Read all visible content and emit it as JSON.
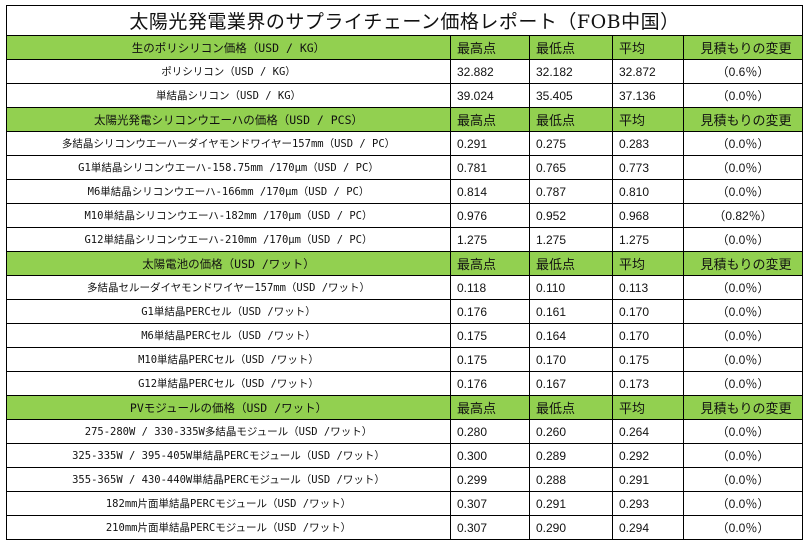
{
  "title": "太陽光発電業界のサプライチェーン価格レポート（FOB中国）",
  "columns": [
    "最高点",
    "最低点",
    "平均",
    "見積もりの変更"
  ],
  "sections": [
    {
      "title": "生のポリシリコン価格（USD / KG）",
      "rows": [
        {
          "name": "ポリシリコン（USD / KG）",
          "high": "32.882",
          "low": "32.182",
          "avg": "32.872",
          "change": "（0.6％）"
        },
        {
          "name": "単結晶シリコン（USD / KG）",
          "high": "39.024",
          "low": "35.405",
          "avg": "37.136",
          "change": "（0.0％）"
        }
      ]
    },
    {
      "title": "太陽光発電シリコンウエーハの価格（USD / PCS）",
      "rows": [
        {
          "name": "多結晶シリコンウエーハーダイヤモンドワイヤー157mm（USD / PC）",
          "high": "0.291",
          "low": "0.275",
          "avg": "0.283",
          "change": "（0.0％）"
        },
        {
          "name": "G1単結晶シリコンウエーハ-158.75mm /170μm（USD / PC）",
          "high": "0.781",
          "low": "0.765",
          "avg": "0.773",
          "change": "（0.0％）"
        },
        {
          "name": "M6単結晶シリコンウエーハ-166mm /170μm（USD / PC）",
          "high": "0.814",
          "low": "0.787",
          "avg": "0.810",
          "change": "（0.0％）"
        },
        {
          "name": "M10単結晶シリコンウエーハ-182mm /170μm（USD / PC）",
          "high": "0.976",
          "low": "0.952",
          "avg": "0.968",
          "change": "（0.82％）"
        },
        {
          "name": "G12単結晶シリコンウエーハ-210mm /170μm（USD / PC）",
          "high": "1.275",
          "low": "1.275",
          "avg": "1.275",
          "change": "（0.0％）"
        }
      ]
    },
    {
      "title": "太陽電池の価格（USD /ワット）",
      "rows": [
        {
          "name": "多結晶セルーダイヤモンドワイヤー157mm（USD /ワット）",
          "high": "0.118",
          "low": "0.110",
          "avg": "0.113",
          "change": "（0.0％）"
        },
        {
          "name": "G1単結晶PERCセル（USD /ワット）",
          "high": "0.176",
          "low": "0.161",
          "avg": "0.170",
          "change": "（0.0％）"
        },
        {
          "name": "M6単結晶PERCセル（USD /ワット）",
          "high": "0.175",
          "low": "0.164",
          "avg": "0.170",
          "change": "（0.0％）"
        },
        {
          "name": "M10単結晶PERCセル（USD /ワット）",
          "high": "0.175",
          "low": "0.170",
          "avg": "0.175",
          "change": "（0.0％）"
        },
        {
          "name": "G12単結晶PERCセル（USD /ワット）",
          "high": "0.176",
          "low": "0.167",
          "avg": "0.173",
          "change": "（0.0％）"
        }
      ]
    },
    {
      "title": "PVモジュールの価格（USD /ワット）",
      "rows": [
        {
          "name": "275-280W / 330-335W多結晶モジュール（USD /ワット）",
          "high": "0.280",
          "low": "0.260",
          "avg": "0.264",
          "change": "（0.0％）"
        },
        {
          "name": "325-335W / 395-405W単結晶PERCモジュール（USD /ワット）",
          "high": "0.300",
          "low": "0.289",
          "avg": "0.292",
          "change": "（0.0％）"
        },
        {
          "name": "355-365W / 430-440W単結晶PERCモジュール（USD /ワット）",
          "high": "0.299",
          "low": "0.288",
          "avg": "0.291",
          "change": "（0.0％）"
        },
        {
          "name": "182mm片面単結晶PERCモジュール（USD /ワット）",
          "high": "0.307",
          "low": "0.291",
          "avg": "0.293",
          "change": "（0.0％）"
        },
        {
          "name": "210mm片面単結晶PERCモジュール（USD /ワット）",
          "high": "0.307",
          "low": "0.290",
          "avg": "0.294",
          "change": "（0.0％）"
        }
      ]
    }
  ]
}
